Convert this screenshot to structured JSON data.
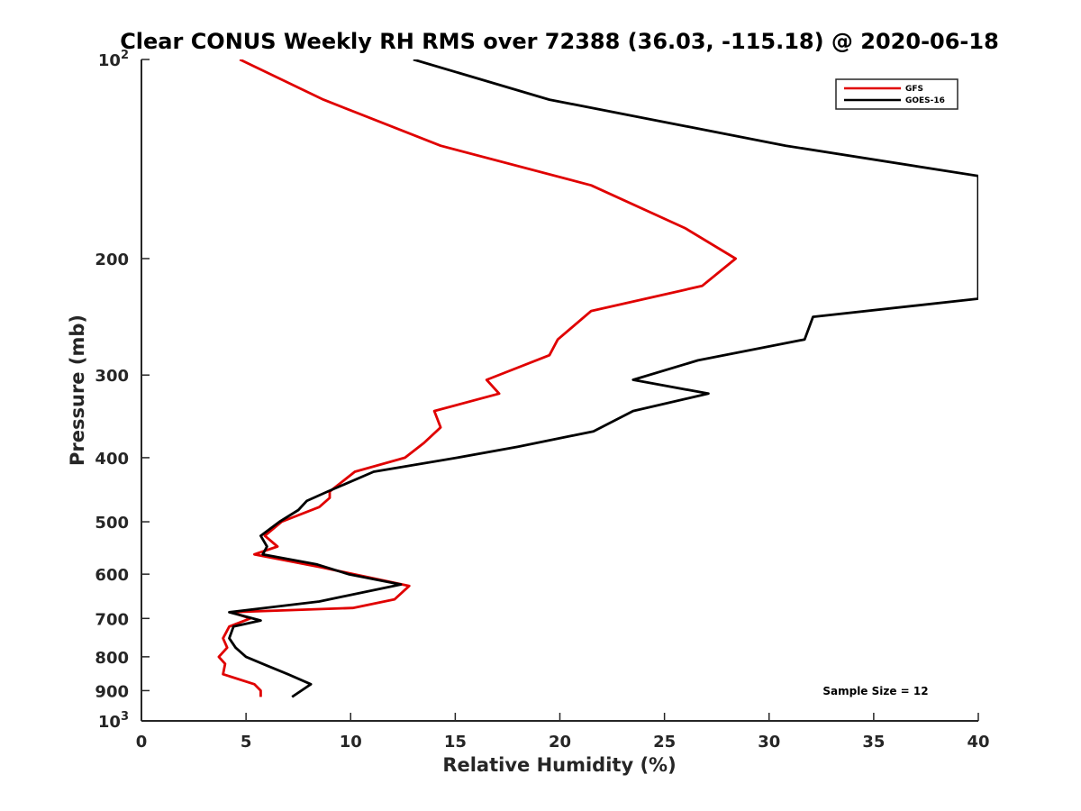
{
  "chart_data": {
    "type": "line",
    "title": "Clear CONUS Weekly RH RMS over 72388 (36.03, -115.18) @ 2020-06-18",
    "xlabel": "Relative Humidity (%)",
    "ylabel": "Pressure (mb)",
    "xlim": [
      0,
      40
    ],
    "ylim": [
      100,
      1000
    ],
    "y_scale": "log",
    "y_reversed": true,
    "x_ticks": [
      "0",
      "5",
      "10",
      "15",
      "20",
      "25",
      "30",
      "35",
      "40"
    ],
    "y_ticks": [
      {
        "value": 100,
        "base": "10",
        "exp": "2"
      },
      {
        "value": 200,
        "label": "200"
      },
      {
        "value": 300,
        "label": "300"
      },
      {
        "value": 400,
        "label": "400"
      },
      {
        "value": 500,
        "label": "500"
      },
      {
        "value": 600,
        "label": "600"
      },
      {
        "value": 700,
        "label": "700"
      },
      {
        "value": 800,
        "label": "800"
      },
      {
        "value": 900,
        "label": "900"
      },
      {
        "value": 1000,
        "base": "10",
        "exp": "3"
      }
    ],
    "legend_position": "top-right",
    "annotation": "Sample Size = 12",
    "series": [
      {
        "name": "GFS",
        "color": "#e00000",
        "points": [
          [
            4.7,
            100
          ],
          [
            8.7,
            115
          ],
          [
            14.3,
            135
          ],
          [
            21.5,
            155
          ],
          [
            26.0,
            180
          ],
          [
            28.4,
            200
          ],
          [
            26.8,
            220
          ],
          [
            21.5,
            240
          ],
          [
            19.9,
            265
          ],
          [
            19.5,
            280
          ],
          [
            16.5,
            305
          ],
          [
            17.1,
            320
          ],
          [
            14.0,
            340
          ],
          [
            14.3,
            360
          ],
          [
            13.5,
            380
          ],
          [
            12.6,
            400
          ],
          [
            10.2,
            420
          ],
          [
            9.0,
            450
          ],
          [
            9.0,
            460
          ],
          [
            8.5,
            475
          ],
          [
            6.7,
            500
          ],
          [
            5.9,
            525
          ],
          [
            6.5,
            545
          ],
          [
            5.4,
            560
          ],
          [
            8.5,
            585
          ],
          [
            12.8,
            625
          ],
          [
            12.1,
            655
          ],
          [
            10.1,
            675
          ],
          [
            4.3,
            685
          ],
          [
            5.2,
            700
          ],
          [
            4.2,
            720
          ],
          [
            3.9,
            750
          ],
          [
            4.1,
            775
          ],
          [
            3.7,
            800
          ],
          [
            4.0,
            820
          ],
          [
            3.9,
            850
          ],
          [
            5.4,
            880
          ],
          [
            5.7,
            900
          ],
          [
            5.7,
            920
          ]
        ]
      },
      {
        "name": "GOES-16",
        "color": "#000000",
        "points": [
          [
            13.0,
            100
          ],
          [
            19.5,
            115
          ],
          [
            30.8,
            135
          ],
          [
            40.0,
            150
          ],
          [
            40.0,
            230
          ],
          [
            32.1,
            245
          ],
          [
            31.7,
            265
          ],
          [
            26.6,
            285
          ],
          [
            23.5,
            305
          ],
          [
            27.1,
            320
          ],
          [
            23.5,
            340
          ],
          [
            21.6,
            365
          ],
          [
            18.0,
            385
          ],
          [
            15.1,
            400
          ],
          [
            11.1,
            420
          ],
          [
            8.9,
            450
          ],
          [
            7.9,
            465
          ],
          [
            7.5,
            480
          ],
          [
            6.6,
            500
          ],
          [
            5.7,
            525
          ],
          [
            6.0,
            545
          ],
          [
            5.8,
            560
          ],
          [
            8.4,
            580
          ],
          [
            9.9,
            600
          ],
          [
            12.4,
            622
          ],
          [
            8.5,
            660
          ],
          [
            4.2,
            685
          ],
          [
            5.7,
            705
          ],
          [
            4.4,
            720
          ],
          [
            4.2,
            750
          ],
          [
            4.5,
            775
          ],
          [
            5.0,
            800
          ],
          [
            6.0,
            825
          ],
          [
            7.0,
            850
          ],
          [
            8.1,
            880
          ],
          [
            7.2,
            920
          ]
        ]
      }
    ]
  }
}
